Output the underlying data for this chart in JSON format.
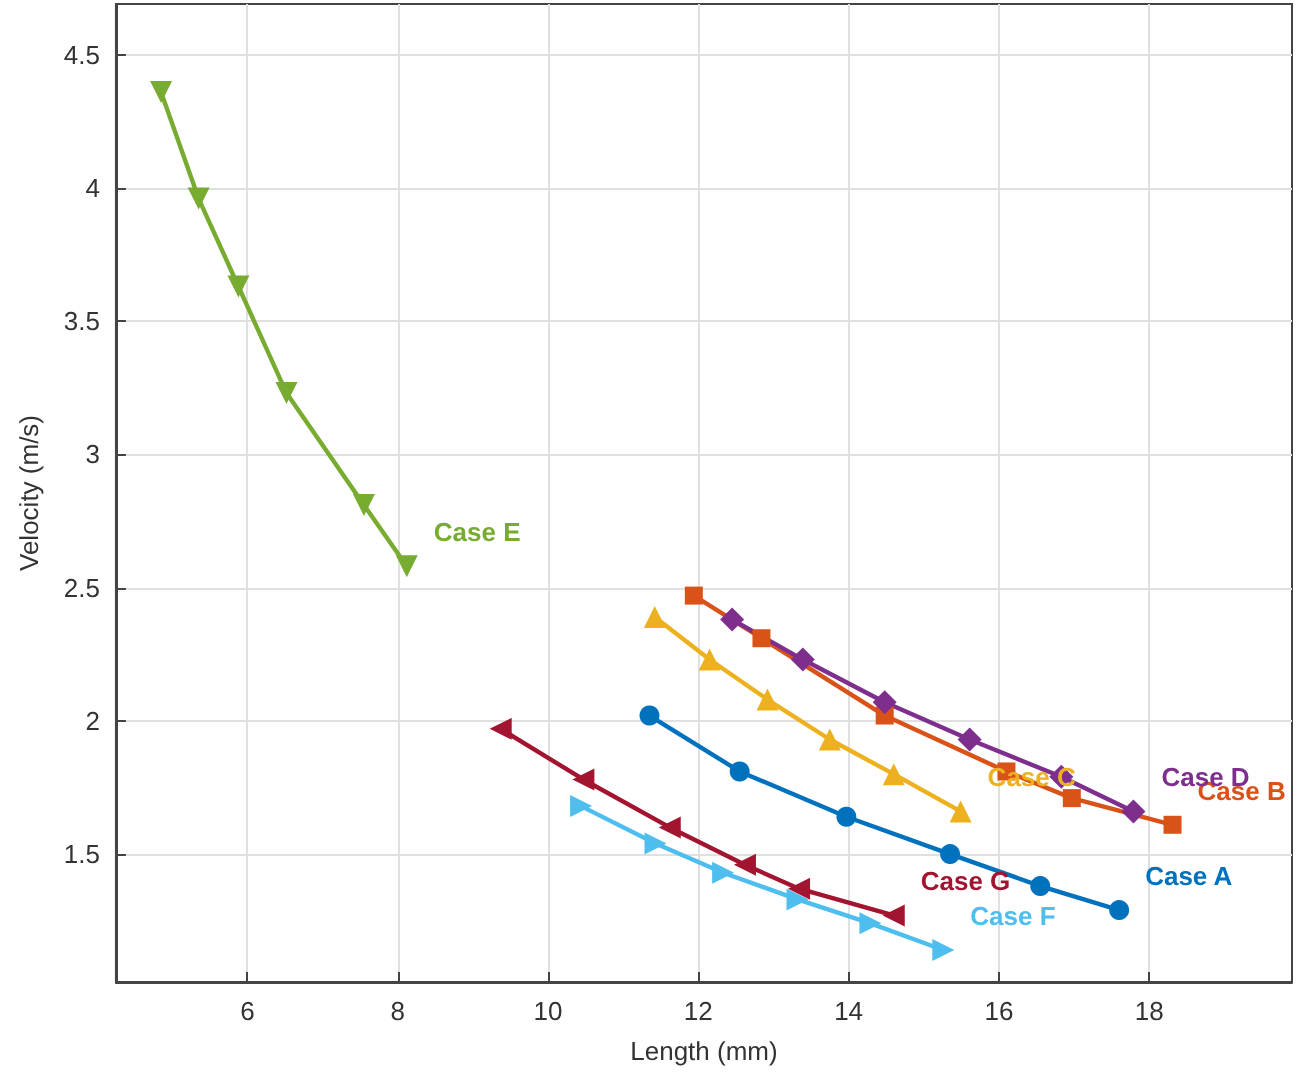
{
  "chart_data": {
    "type": "line",
    "xlabel": "Length (mm)",
    "ylabel": "Velocity (m/s)",
    "xlim": [
      4.25,
      19.9
    ],
    "ylim": [
      1.02,
      4.69
    ],
    "xticks": [
      6,
      8,
      10,
      12,
      14,
      16,
      18
    ],
    "yticks": [
      1.5,
      2,
      2.5,
      3,
      3.5,
      4,
      4.5
    ],
    "grid": true,
    "series": [
      {
        "name": "Case A",
        "color": "#0072bd",
        "marker": "circle",
        "x": [
          11.35,
          12.55,
          13.97,
          15.35,
          16.55,
          17.6
        ],
        "values": [
          2.02,
          1.81,
          1.64,
          1.5,
          1.38,
          1.29
        ]
      },
      {
        "name": "Case B",
        "color": "#d95319",
        "marker": "square",
        "x": [
          11.94,
          12.84,
          14.48,
          16.1,
          16.97,
          18.31
        ],
        "values": [
          2.47,
          2.31,
          2.02,
          1.81,
          1.71,
          1.61
        ]
      },
      {
        "name": "Case C",
        "color": "#edb120",
        "marker": "triangle",
        "x": [
          11.42,
          12.15,
          12.92,
          13.75,
          14.6,
          15.49
        ],
        "values": [
          2.39,
          2.23,
          2.08,
          1.93,
          1.8,
          1.66
        ]
      },
      {
        "name": "Case D",
        "color": "#7e2f8e",
        "marker": "diamond",
        "x": [
          12.45,
          13.39,
          14.48,
          15.61,
          16.83,
          17.79
        ],
        "values": [
          2.38,
          2.23,
          2.07,
          1.93,
          1.79,
          1.66
        ]
      },
      {
        "name": "Case E",
        "color": "#77ac30",
        "marker": "triangle-down",
        "x": [
          4.85,
          5.35,
          5.88,
          6.52,
          7.55,
          8.12
        ],
        "values": [
          4.36,
          3.96,
          3.63,
          3.23,
          2.81,
          2.58
        ]
      },
      {
        "name": "Case F",
        "color": "#4dbeee",
        "marker": "triangle-right",
        "x": [
          10.44,
          11.43,
          12.33,
          13.32,
          14.29,
          15.26
        ],
        "values": [
          1.68,
          1.54,
          1.43,
          1.33,
          1.24,
          1.14
        ]
      },
      {
        "name": "Case G",
        "color": "#a2142f",
        "marker": "triangle-left",
        "x": [
          9.37,
          10.47,
          11.62,
          12.62,
          13.34,
          14.6
        ],
        "values": [
          1.97,
          1.78,
          1.6,
          1.46,
          1.37,
          1.27
        ]
      }
    ]
  }
}
